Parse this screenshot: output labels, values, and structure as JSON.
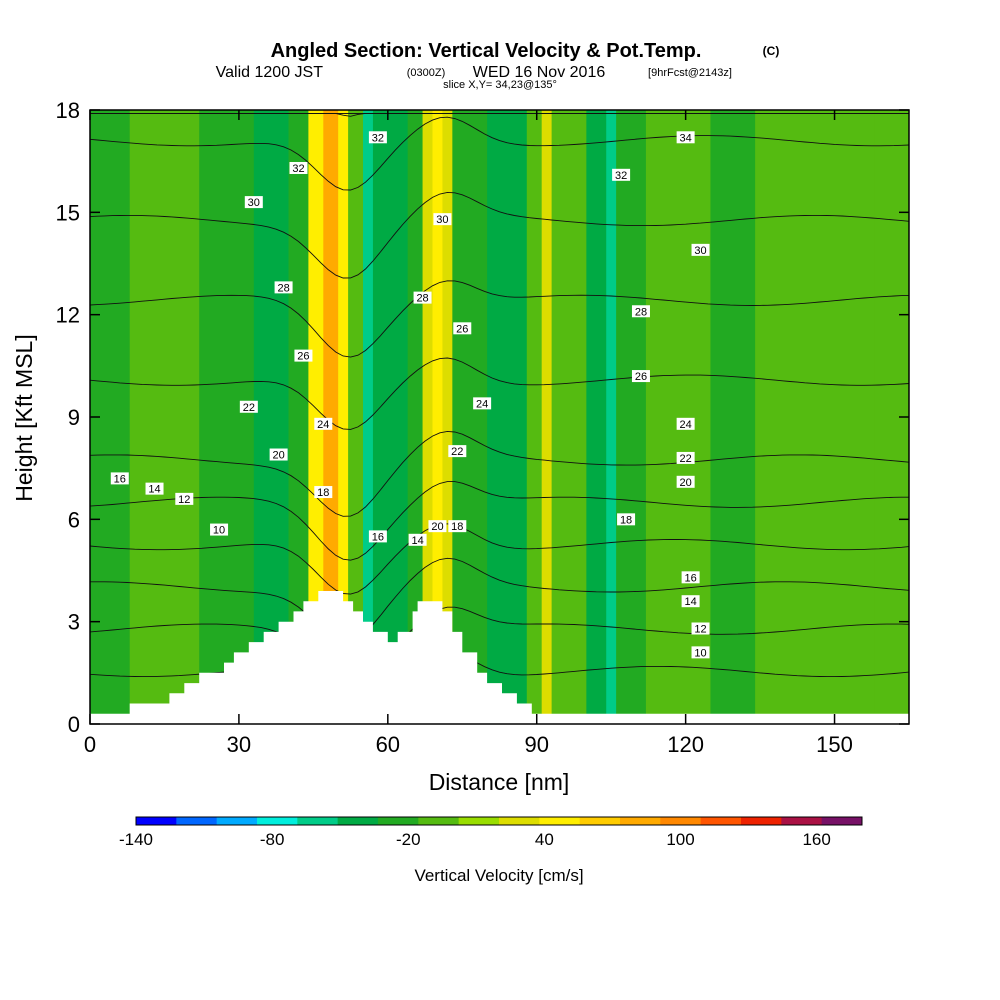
{
  "header": {
    "title": "Angled Section: Vertical Velocity & Pot.Temp.",
    "title_unit": "(C)",
    "valid_prefix": "Valid 1200 JST",
    "valid_utc": "(0300Z)",
    "valid_date": "WED 16 Nov 2016",
    "forecast": "[9hrFcst@2143z]",
    "slice": "slice X,Y= 34,23@135°"
  },
  "chart_data": {
    "type": "heatmap",
    "xlabel": "Distance [nm]",
    "ylabel": "Height [Kft MSL]",
    "xlim": [
      0,
      165
    ],
    "ylim": [
      0,
      18
    ],
    "x_ticks": [
      0,
      30,
      60,
      90,
      120,
      150
    ],
    "y_ticks": [
      0,
      3,
      6,
      9,
      12,
      15,
      18
    ],
    "colorbar": {
      "label": "Vertical Velocity [cm/s]",
      "range": [
        -140,
        180
      ],
      "step": 20,
      "tick_labels": [
        "-140",
        "-80",
        "-20",
        "40",
        "100",
        "160"
      ],
      "tick_values": [
        -140,
        -80,
        -20,
        40,
        100,
        160
      ],
      "colors": [
        "#0000ff",
        "#0066ff",
        "#00aaff",
        "#00eedd",
        "#00cc88",
        "#00aa44",
        "#22aa22",
        "#55bb11",
        "#99dd00",
        "#dddd00",
        "#ffee00",
        "#ffcc00",
        "#ffaa00",
        "#ff8800",
        "#ff5500",
        "#ee2200",
        "#aa1144",
        "#771166"
      ]
    },
    "velocity_bands": [
      {
        "x": [
          0,
          8
        ],
        "value": -10
      },
      {
        "x": [
          8,
          22
        ],
        "value": 10
      },
      {
        "x": [
          22,
          33
        ],
        "value": -10
      },
      {
        "x": [
          33,
          40
        ],
        "value": -25
      },
      {
        "x": [
          40,
          44
        ],
        "value": -5
      },
      {
        "x": [
          44,
          47
        ],
        "value": 70
      },
      {
        "x": [
          47,
          50
        ],
        "value": 110
      },
      {
        "x": [
          50,
          52
        ],
        "value": 75
      },
      {
        "x": [
          52,
          55
        ],
        "value": 10
      },
      {
        "x": [
          55,
          57
        ],
        "value": -45
      },
      {
        "x": [
          57,
          64
        ],
        "value": -25
      },
      {
        "x": [
          64,
          67
        ],
        "value": -5
      },
      {
        "x": [
          67,
          69
        ],
        "value": 45
      },
      {
        "x": [
          69,
          71
        ],
        "value": 75
      },
      {
        "x": [
          71,
          73
        ],
        "value": 40
      },
      {
        "x": [
          73,
          80
        ],
        "value": -10
      },
      {
        "x": [
          80,
          88
        ],
        "value": -25
      },
      {
        "x": [
          88,
          91
        ],
        "value": 10
      },
      {
        "x": [
          91,
          93
        ],
        "value": 40
      },
      {
        "x": [
          93,
          100
        ],
        "value": 10
      },
      {
        "x": [
          100,
          104
        ],
        "value": -25
      },
      {
        "x": [
          104,
          106
        ],
        "value": -60
      },
      {
        "x": [
          106,
          112
        ],
        "value": -10
      },
      {
        "x": [
          112,
          125
        ],
        "value": 10
      },
      {
        "x": [
          125,
          134
        ],
        "value": -10
      },
      {
        "x": [
          134,
          158
        ],
        "value": 10
      },
      {
        "x": [
          158,
          165
        ],
        "value": 0
      }
    ],
    "terrain_kft": [
      [
        0,
        0.3
      ],
      [
        8,
        0.3
      ],
      [
        8,
        0.6
      ],
      [
        16,
        0.6
      ],
      [
        16,
        0.9
      ],
      [
        19,
        0.9
      ],
      [
        19,
        1.2
      ],
      [
        22,
        1.2
      ],
      [
        22,
        1.5
      ],
      [
        27,
        1.5
      ],
      [
        27,
        1.8
      ],
      [
        29,
        1.8
      ],
      [
        29,
        2.1
      ],
      [
        32,
        2.1
      ],
      [
        32,
        2.4
      ],
      [
        35,
        2.4
      ],
      [
        35,
        2.7
      ],
      [
        38,
        2.7
      ],
      [
        38,
        3.0
      ],
      [
        41,
        3.0
      ],
      [
        41,
        3.3
      ],
      [
        43,
        3.3
      ],
      [
        43,
        3.6
      ],
      [
        46,
        3.6
      ],
      [
        46,
        3.9
      ],
      [
        51,
        3.9
      ],
      [
        51,
        3.6
      ],
      [
        53,
        3.6
      ],
      [
        53,
        3.3
      ],
      [
        55,
        3.3
      ],
      [
        55,
        3.0
      ],
      [
        57,
        3.0
      ],
      [
        57,
        2.7
      ],
      [
        60,
        2.7
      ],
      [
        60,
        2.4
      ],
      [
        62,
        2.4
      ],
      [
        62,
        2.7
      ],
      [
        65,
        2.7
      ],
      [
        65,
        3.3
      ],
      [
        66,
        3.3
      ],
      [
        66,
        3.6
      ],
      [
        71,
        3.6
      ],
      [
        71,
        3.3
      ],
      [
        73,
        3.3
      ],
      [
        73,
        2.7
      ],
      [
        75,
        2.7
      ],
      [
        75,
        2.1
      ],
      [
        78,
        2.1
      ],
      [
        78,
        1.5
      ],
      [
        80,
        1.5
      ],
      [
        80,
        1.2
      ],
      [
        83,
        1.2
      ],
      [
        83,
        0.9
      ],
      [
        86,
        0.9
      ],
      [
        86,
        0.6
      ],
      [
        89,
        0.6
      ],
      [
        89,
        0.3
      ],
      [
        165,
        0.3
      ]
    ],
    "isentropes_c": [
      10,
      12,
      14,
      16,
      18,
      20,
      22,
      24,
      26,
      28,
      30,
      32,
      34
    ],
    "isentrope_labels": [
      {
        "text": "16",
        "x": 6,
        "y": 7.2
      },
      {
        "text": "14",
        "x": 13,
        "y": 6.9
      },
      {
        "text": "12",
        "x": 19,
        "y": 6.6
      },
      {
        "text": "10",
        "x": 26,
        "y": 5.7
      },
      {
        "text": "22",
        "x": 32,
        "y": 9.3
      },
      {
        "text": "20",
        "x": 38,
        "y": 7.9
      },
      {
        "text": "18",
        "x": 47,
        "y": 6.8
      },
      {
        "text": "24",
        "x": 47,
        "y": 8.8
      },
      {
        "text": "26",
        "x": 43,
        "y": 10.8
      },
      {
        "text": "28",
        "x": 39,
        "y": 12.8
      },
      {
        "text": "30",
        "x": 33,
        "y": 15.3
      },
      {
        "text": "32",
        "x": 42,
        "y": 16.3
      },
      {
        "text": "32",
        "x": 58,
        "y": 17.2
      },
      {
        "text": "16",
        "x": 58,
        "y": 5.5
      },
      {
        "text": "14",
        "x": 66,
        "y": 5.4
      },
      {
        "text": "20",
        "x": 70,
        "y": 5.8
      },
      {
        "text": "18",
        "x": 74,
        "y": 5.8
      },
      {
        "text": "22",
        "x": 74,
        "y": 8.0
      },
      {
        "text": "24",
        "x": 79,
        "y": 9.4
      },
      {
        "text": "26",
        "x": 75,
        "y": 11.6
      },
      {
        "text": "28",
        "x": 67,
        "y": 12.5
      },
      {
        "text": "30",
        "x": 71,
        "y": 14.8
      },
      {
        "text": "32",
        "x": 107,
        "y": 16.1
      },
      {
        "text": "34",
        "x": 120,
        "y": 17.2
      },
      {
        "text": "30",
        "x": 123,
        "y": 13.9
      },
      {
        "text": "28",
        "x": 111,
        "y": 12.1
      },
      {
        "text": "26",
        "x": 111,
        "y": 10.2
      },
      {
        "text": "24",
        "x": 120,
        "y": 8.8
      },
      {
        "text": "22",
        "x": 120,
        "y": 7.8
      },
      {
        "text": "20",
        "x": 120,
        "y": 7.1
      },
      {
        "text": "18",
        "x": 108,
        "y": 6.0
      },
      {
        "text": "16",
        "x": 121,
        "y": 4.3
      },
      {
        "text": "14",
        "x": 121,
        "y": 3.6
      },
      {
        "text": "12",
        "x": 123,
        "y": 2.8
      },
      {
        "text": "10",
        "x": 123,
        "y": 2.1
      }
    ]
  }
}
